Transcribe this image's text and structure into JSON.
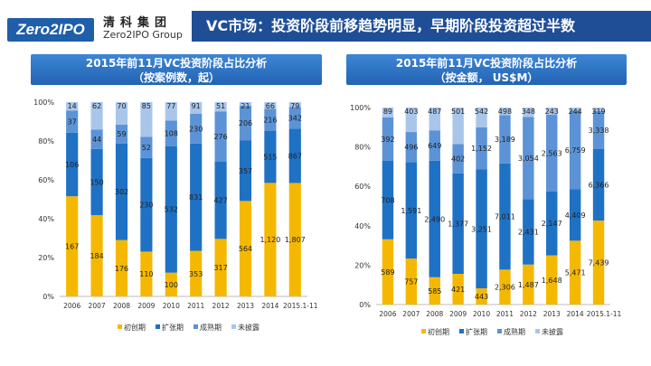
{
  "header": {
    "logo": "Zero2IPO",
    "logo_cn": "清科集团",
    "logo_en": "Zero2IPO Group",
    "title": "VC市场：投资阶段前移趋势明显，早期阶段投资超过半数"
  },
  "colors": {
    "seed": "#f5b800",
    "expansion": "#1f71c4",
    "mature": "#5b93d6",
    "undisclosed": "#a9c6ea"
  },
  "chart_data": [
    {
      "type": "bar",
      "stacked": "percent",
      "title": "2015年前11月VC投资阶段占比分析",
      "subtitle": "（按案例数，起）",
      "categories": [
        "2006",
        "2007",
        "2008",
        "2009",
        "2010",
        "2011",
        "2012",
        "2013",
        "2014",
        "2015.1-11"
      ],
      "yticks": [
        "0%",
        "20%",
        "40%",
        "60%",
        "80%",
        "100%"
      ],
      "series": [
        {
          "name": "初创期",
          "values": [
            167,
            184,
            176,
            110,
            100,
            353,
            317,
            564,
            1120,
            1807
          ],
          "labels": [
            "167",
            "184",
            "176",
            "110",
            "100",
            "353",
            "317",
            "564",
            "1,120",
            "1,807"
          ]
        },
        {
          "name": "扩张期",
          "values": [
            106,
            150,
            302,
            230,
            532,
            831,
            427,
            357,
            515,
            867
          ],
          "labels": [
            "106",
            "150",
            "302",
            "230",
            "532",
            "831",
            "427",
            "357",
            "515",
            "867"
          ]
        },
        {
          "name": "成熟期",
          "values": [
            37,
            44,
            59,
            52,
            108,
            230,
            276,
            206,
            216,
            342
          ],
          "labels": [
            "37",
            "44",
            "59",
            "52",
            "108",
            "230",
            "276",
            "206",
            "216",
            "342"
          ]
        },
        {
          "name": "未披露",
          "values": [
            14,
            62,
            70,
            85,
            77,
            91,
            51,
            21,
            66,
            79
          ],
          "labels": [
            "14",
            "62",
            "70",
            "85",
            "77",
            "91",
            "51",
            "21",
            "66",
            "79"
          ]
        }
      ]
    },
    {
      "type": "bar",
      "stacked": "percent",
      "title": "2015年前11月VC投资阶段占比分析",
      "subtitle": "（按金额， US$M）",
      "categories": [
        "2006",
        "2007",
        "2008",
        "2009",
        "2010",
        "2011",
        "2012",
        "2013",
        "2014",
        "2015.1-11"
      ],
      "yticks": [
        "0%",
        "20%",
        "40%",
        "60%",
        "80%",
        "100%"
      ],
      "series": [
        {
          "name": "初创期",
          "values": [
            589,
            757,
            585,
            421,
            443,
            2306,
            1487,
            1648,
            5471,
            7439
          ],
          "labels": [
            "589",
            "757",
            "585",
            "421",
            "443",
            "2,306",
            "1,487",
            "1,648",
            "5,471",
            "7,439"
          ]
        },
        {
          "name": "扩张期",
          "values": [
            708,
            1591,
            2490,
            1377,
            3251,
            7011,
            2431,
            2147,
            4409,
            6366
          ],
          "labels": [
            "708",
            "1,591",
            "2,490",
            "1,377",
            "3,251",
            "7,011",
            "2,431",
            "2,147",
            "4,409",
            "6,366"
          ]
        },
        {
          "name": "成熟期",
          "values": [
            392,
            496,
            649,
            402,
            1152,
            3189,
            3054,
            2563,
            6759,
            3338
          ],
          "labels": [
            "392",
            "496",
            "649",
            "402",
            "1,152",
            "3,189",
            "3,054",
            "2,563",
            "6,759",
            "3,338"
          ]
        },
        {
          "name": "未披露",
          "values": [
            89,
            403,
            487,
            501,
            542,
            498,
            348,
            243,
            244,
            319
          ],
          "labels": [
            "89",
            "403",
            "487",
            "501",
            "542",
            "498",
            "348",
            "243",
            "244",
            "319"
          ]
        }
      ]
    }
  ]
}
